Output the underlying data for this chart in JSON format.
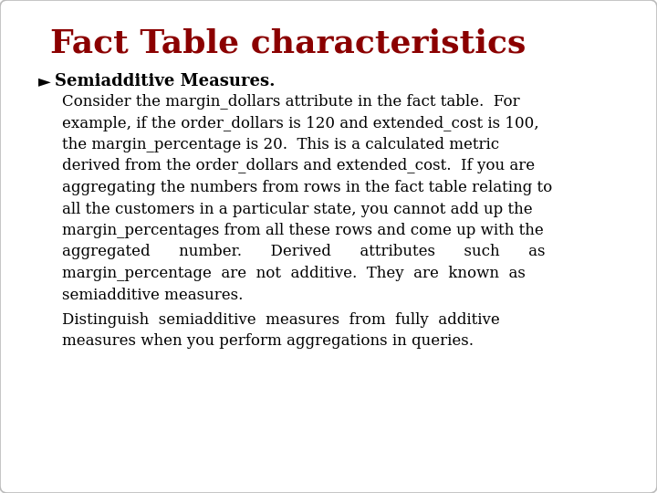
{
  "title": "Fact Table characteristics",
  "title_color": "#8B0000",
  "title_fontsize": 26,
  "bullet_symbol": "►",
  "bullet_text": "Semiadditive Measures.",
  "bullet_fontsize": 13,
  "body_fontsize": 12,
  "background_color": "#FFFFFF",
  "text_color": "#000000",
  "para1_line1": "Consider the margin_dollars attribute in the fact table.  For",
  "para1_line2": "example, if the order_dollars is 120 and extended_cost is 100,",
  "para1_line3": "the margin_percentage is 20.  This is a calculated metric",
  "para1_line4": "derived from the order_dollars and extended_cost.  If you are",
  "para1_line5": "aggregating the numbers from rows in the fact table relating to",
  "para1_line6": "all the customers in a particular state, you cannot add up the",
  "para1_line7": "margin_percentages from all these rows and come up with the",
  "para1_line8": "aggregated      number.      Derived      attributes      such      as",
  "para1_line9": "margin_percentage  are  not  additive.  They  are  known  as",
  "para1_line10": "semiadditive measures.",
  "para2_line1": "Distinguish  semiadditive  measures  from  fully  additive",
  "para2_line2": "measures when you perform aggregations in queries.",
  "fig_width": 7.2,
  "fig_height": 5.4,
  "dpi": 100
}
